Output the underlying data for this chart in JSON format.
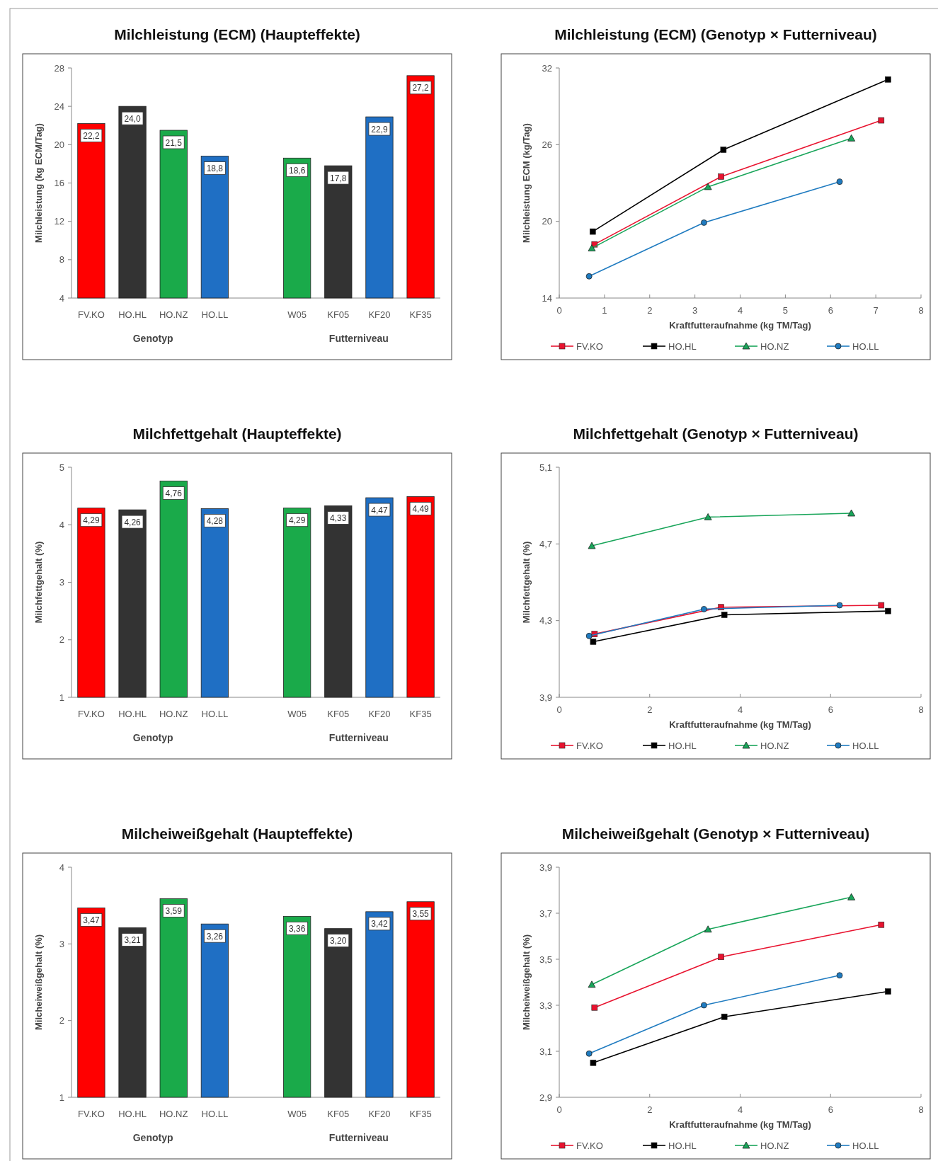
{
  "chart_data": [
    {
      "type": "bar",
      "title": "Milchleistung (ECM) (Haupteffekte)",
      "ylabel": "Milchleistung (kg ECM/Tag)",
      "categories": [
        "FV.KO",
        "HO.HL",
        "HO.NZ",
        "HO.LL",
        null,
        "W05",
        "KF05",
        "KF20",
        "KF35"
      ],
      "values": [
        22.2,
        24.0,
        21.5,
        18.8,
        null,
        18.6,
        17.8,
        22.9,
        27.2
      ],
      "value_labels": [
        "22,2",
        "24,0",
        "21,5",
        "18,8",
        null,
        "18,6",
        "17,8",
        "22,9",
        "27,2"
      ],
      "colors": [
        "#ff0000",
        "#333333",
        "#1aaa4a",
        "#1f6fc4",
        null,
        "#1aaa4a",
        "#333333",
        "#1f6fc4",
        "#ff0000"
      ],
      "ylim": [
        4,
        28
      ],
      "yticks": [
        4,
        8,
        12,
        16,
        20,
        24,
        28
      ],
      "annotations": [
        "Genotyp",
        "Futterniveau"
      ]
    },
    {
      "type": "line",
      "title": "Milchleistung (ECM) (Genotyp × Futterniveau)",
      "xlabel": "Kraftfutteraufnahme (kg TM/Tag)",
      "ylabel": "Milchleistung ECM (kg/Tag)",
      "xlim": [
        0,
        8
      ],
      "xticks": [
        0,
        1,
        2,
        3,
        4,
        5,
        6,
        7,
        8
      ],
      "ylim": [
        14,
        32
      ],
      "yticks": [
        14,
        20,
        26,
        32
      ],
      "legend": "bottom",
      "series": [
        {
          "name": "FV.KO",
          "color": "#e8132f",
          "marker": "square",
          "x": [
            0.78,
            3.58,
            7.12
          ],
          "values": [
            18.2,
            23.5,
            27.9
          ]
        },
        {
          "name": "HO.HL",
          "color": "#000000",
          "marker": "square",
          "x": [
            0.74,
            3.63,
            7.27
          ],
          "values": [
            19.2,
            25.6,
            31.1
          ]
        },
        {
          "name": "HO.NZ",
          "color": "#19a55a",
          "marker": "triangle",
          "x": [
            0.72,
            3.29,
            6.46
          ],
          "values": [
            17.9,
            22.7,
            26.5
          ]
        },
        {
          "name": "HO.LL",
          "color": "#1f7bc0",
          "marker": "circle",
          "x": [
            0.66,
            3.2,
            6.2
          ],
          "values": [
            15.7,
            19.9,
            23.1
          ]
        }
      ]
    },
    {
      "type": "bar",
      "title": "Milchfettgehalt (Haupteffekte)",
      "ylabel": "Milchfettgehalt (%)",
      "categories": [
        "FV.KO",
        "HO.HL",
        "HO.NZ",
        "HO.LL",
        null,
        "W05",
        "KF05",
        "KF20",
        "KF35"
      ],
      "values": [
        4.29,
        4.26,
        4.76,
        4.28,
        null,
        4.29,
        4.33,
        4.47,
        4.49
      ],
      "value_labels": [
        "4,29",
        "4,26",
        "4,76",
        "4,28",
        null,
        "4,29",
        "4,33",
        "4,47",
        "4,49"
      ],
      "colors": [
        "#ff0000",
        "#333333",
        "#1aaa4a",
        "#1f6fc4",
        null,
        "#1aaa4a",
        "#333333",
        "#1f6fc4",
        "#ff0000"
      ],
      "ylim": [
        1,
        5
      ],
      "yticks": [
        1,
        2,
        3,
        4,
        5
      ],
      "annotations": [
        "Genotyp",
        "Futterniveau"
      ]
    },
    {
      "type": "line",
      "title": "Milchfettgehalt (Genotyp × Futterniveau)",
      "xlabel": "Kraftfutteraufnahme (kg TM/Tag)",
      "ylabel": "Milchfettgehalt (%)",
      "xlim": [
        0,
        8
      ],
      "xticks": [
        0,
        2,
        4,
        6,
        8
      ],
      "ylim": [
        3.9,
        5.1
      ],
      "yticks": [
        {
          "value": 3.9,
          "label": "3,9"
        },
        {
          "value": 4.3,
          "label": "4,3"
        },
        {
          "value": 4.7,
          "label": "4,7"
        },
        {
          "value": 5.1,
          "label": "5,1"
        }
      ],
      "legend": "bottom",
      "series": [
        {
          "name": "FV.KO",
          "color": "#e8132f",
          "marker": "square",
          "x": [
            0.78,
            3.58,
            7.12
          ],
          "values": [
            4.23,
            4.37,
            4.38
          ]
        },
        {
          "name": "HO.HL",
          "color": "#000000",
          "marker": "square",
          "x": [
            0.75,
            3.65,
            7.27
          ],
          "values": [
            4.19,
            4.33,
            4.35
          ]
        },
        {
          "name": "HO.NZ",
          "color": "#19a55a",
          "marker": "triangle",
          "x": [
            0.72,
            3.29,
            6.46
          ],
          "values": [
            4.69,
            4.84,
            4.86
          ]
        },
        {
          "name": "HO.LL",
          "color": "#1f7bc0",
          "marker": "circle",
          "x": [
            0.66,
            3.2,
            6.2
          ],
          "values": [
            4.22,
            4.36,
            4.38
          ]
        }
      ]
    },
    {
      "type": "bar",
      "title": "Milcheiweißgehalt (Haupteffekte)",
      "ylabel": "Milcheiweißgehalt (%)",
      "categories": [
        "FV.KO",
        "HO.HL",
        "HO.NZ",
        "HO.LL",
        null,
        "W05",
        "KF05",
        "KF20",
        "KF35"
      ],
      "values": [
        3.47,
        3.21,
        3.59,
        3.26,
        null,
        3.36,
        3.2,
        3.42,
        3.55
      ],
      "value_labels": [
        "3,47",
        "3,21",
        "3,59",
        "3,26",
        null,
        "3,36",
        "3,20",
        "3,42",
        "3,55"
      ],
      "colors": [
        "#ff0000",
        "#333333",
        "#1aaa4a",
        "#1f6fc4",
        null,
        "#1aaa4a",
        "#333333",
        "#1f6fc4",
        "#ff0000"
      ],
      "ylim": [
        1,
        4
      ],
      "yticks": [
        1,
        2,
        3,
        4
      ],
      "annotations": [
        "Genotyp",
        "Futterniveau"
      ]
    },
    {
      "type": "line",
      "title": "Milcheiweißgehalt (Genotyp × Futterniveau)",
      "xlabel": "Kraftfutteraufnahme (kg TM/Tag)",
      "ylabel": "Milcheiweißgehalt (%)",
      "xlim": [
        0,
        8
      ],
      "xticks": [
        0,
        2,
        4,
        6,
        8
      ],
      "ylim": [
        2.9,
        3.9
      ],
      "yticks": [
        {
          "value": 2.9,
          "label": "2,9"
        },
        {
          "value": 3.1,
          "label": "3,1"
        },
        {
          "value": 3.3,
          "label": "3,3"
        },
        {
          "value": 3.5,
          "label": "3,5"
        },
        {
          "value": 3.7,
          "label": "3,7"
        },
        {
          "value": 3.9,
          "label": "3,9"
        }
      ],
      "legend": "bottom",
      "series": [
        {
          "name": "FV.KO",
          "color": "#e8132f",
          "marker": "square",
          "x": [
            0.78,
            3.58,
            7.12
          ],
          "values": [
            3.29,
            3.51,
            3.65
          ]
        },
        {
          "name": "HO.HL",
          "color": "#000000",
          "marker": "square",
          "x": [
            0.75,
            3.65,
            7.27
          ],
          "values": [
            3.05,
            3.25,
            3.36
          ]
        },
        {
          "name": "HO.NZ",
          "color": "#19a55a",
          "marker": "triangle",
          "x": [
            0.72,
            3.29,
            6.46
          ],
          "values": [
            3.39,
            3.63,
            3.77
          ]
        },
        {
          "name": "HO.LL",
          "color": "#1f7bc0",
          "marker": "circle",
          "x": [
            0.66,
            3.2,
            6.2
          ],
          "values": [
            3.09,
            3.3,
            3.43
          ]
        }
      ]
    }
  ]
}
